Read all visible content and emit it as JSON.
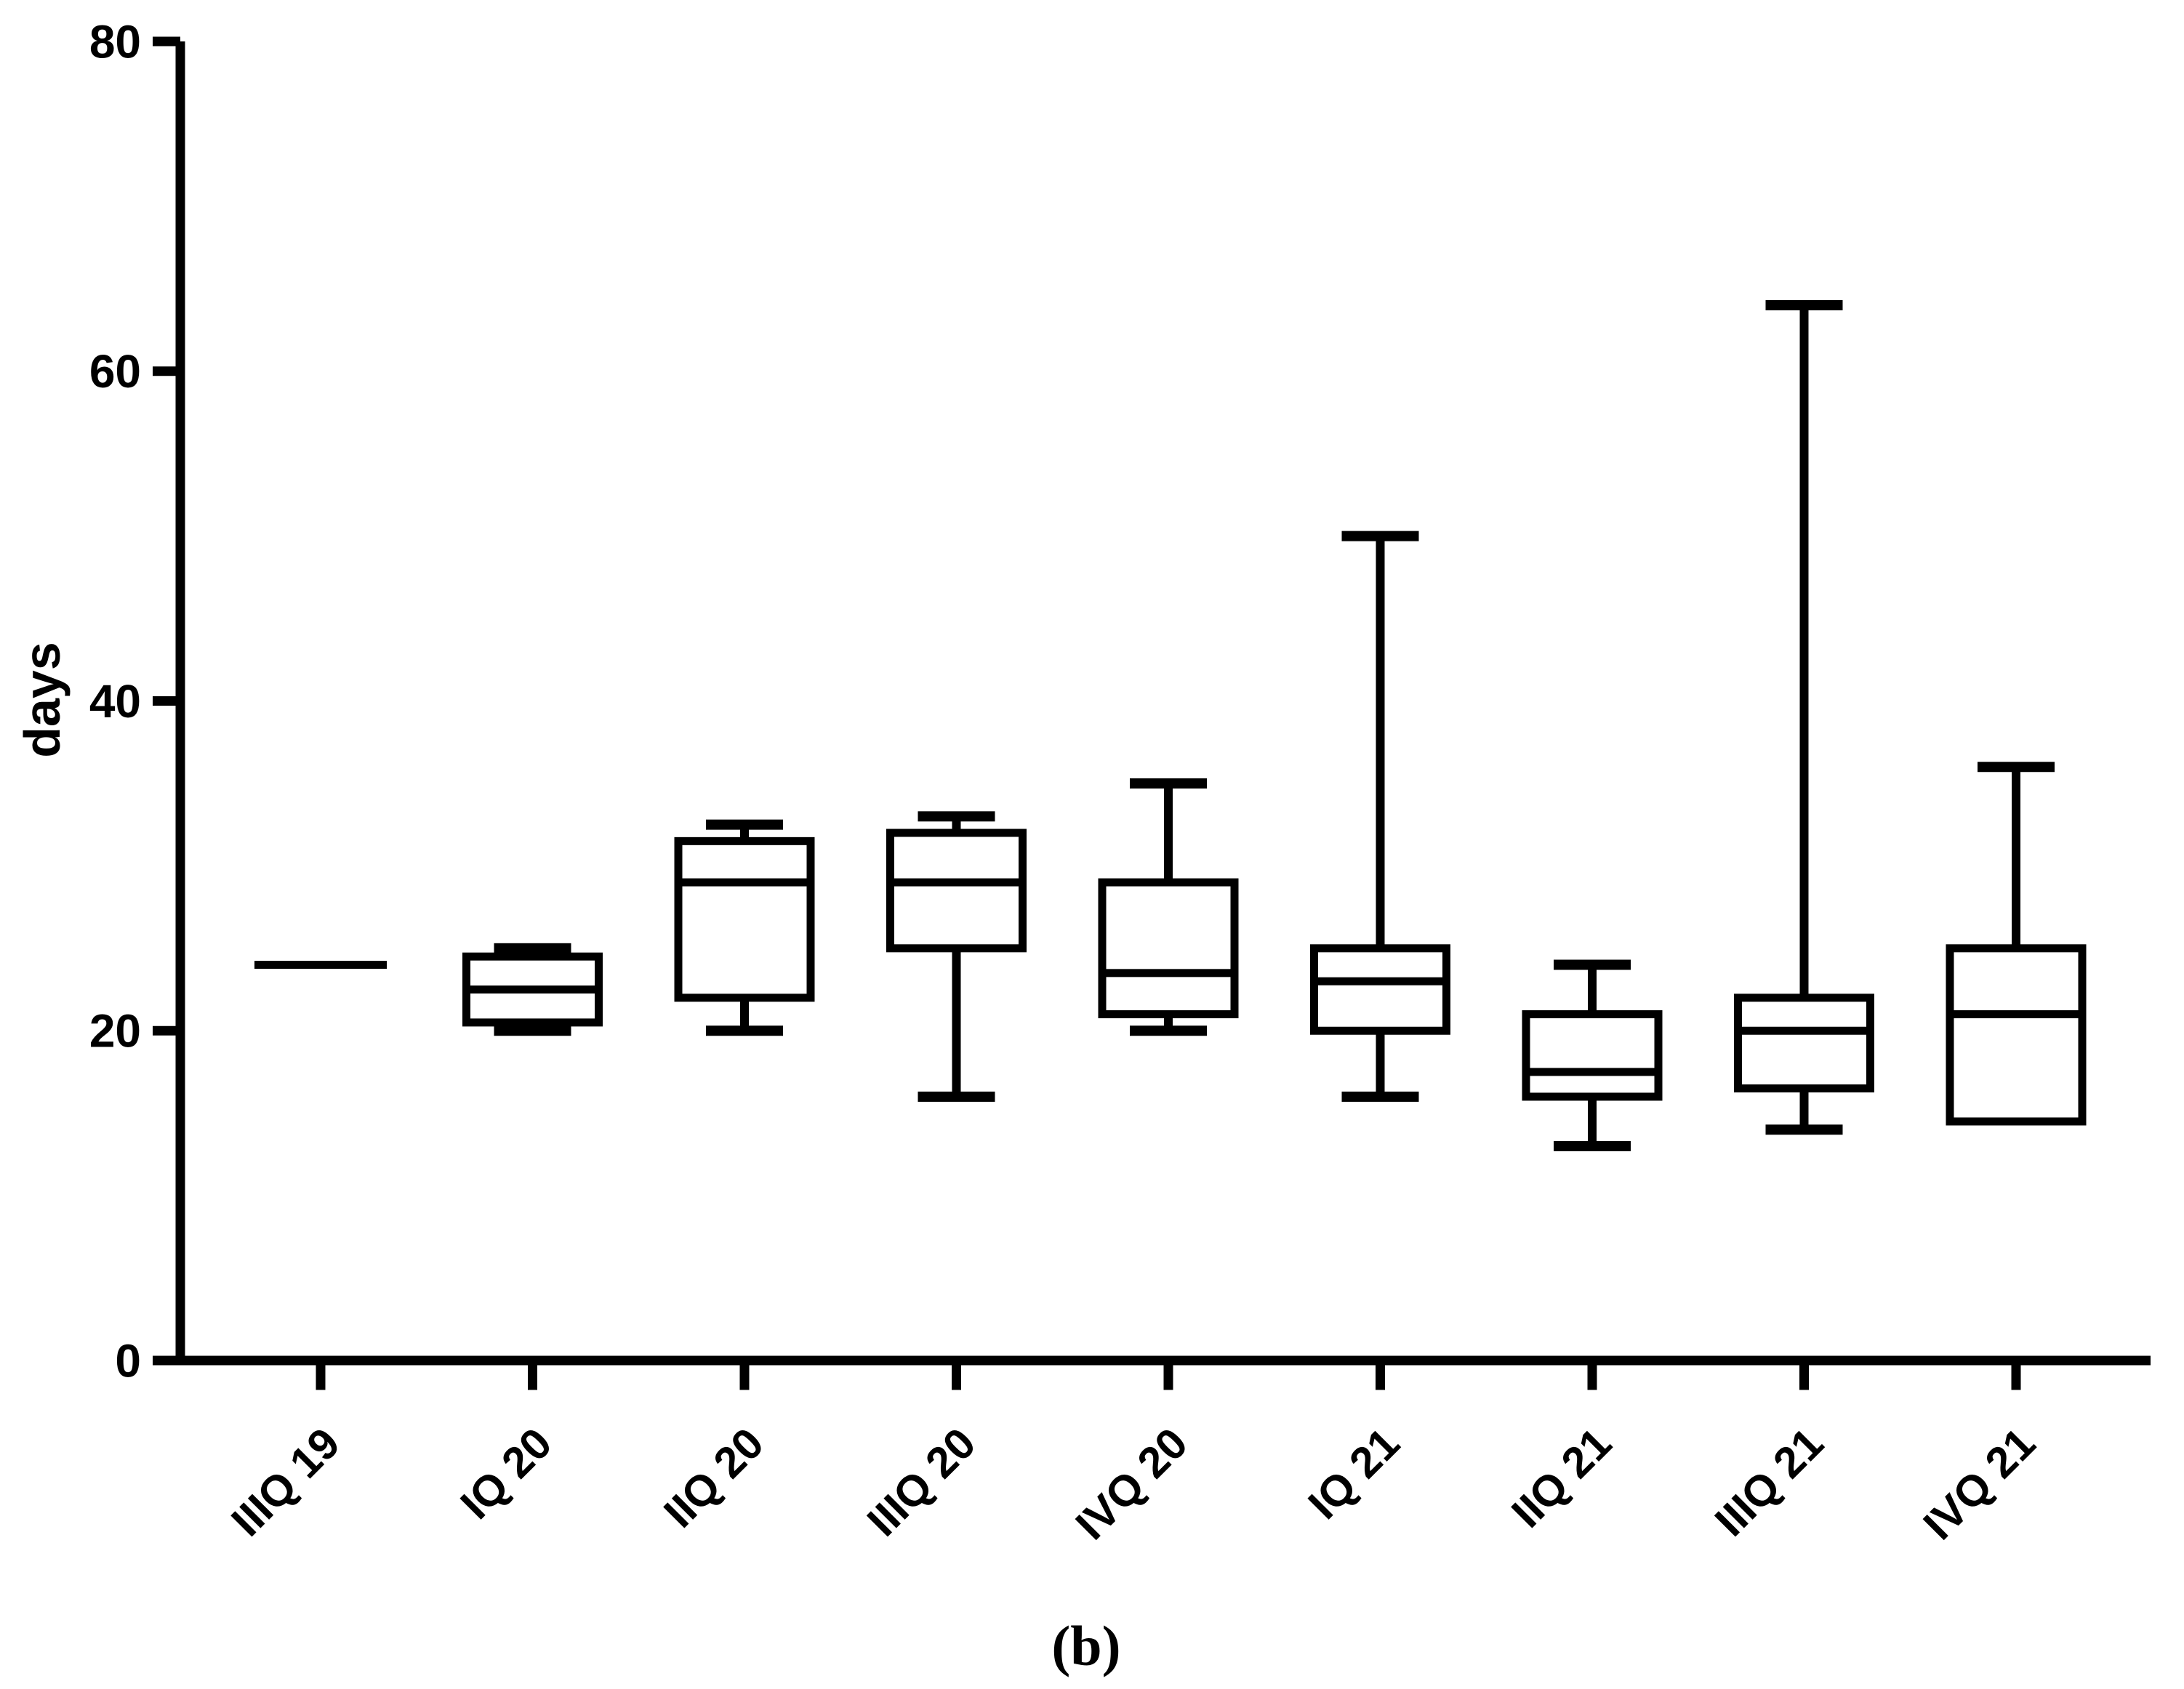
{
  "figure": {
    "caption": "(b)"
  },
  "chart_data": {
    "type": "box",
    "title": "",
    "xlabel": "",
    "ylabel": "days",
    "ylim": [
      0,
      80
    ],
    "yticks": [
      "0",
      "20",
      "40",
      "60",
      "80"
    ],
    "grid": false,
    "legend": "none",
    "box_color": "#000000",
    "background_color": "#ffffff",
    "categories": [
      "IIIQ 19",
      "IQ 20",
      "IIQ 20",
      "IIIQ 20",
      "IVQ 20",
      "IQ 21",
      "IIQ 21",
      "IIIQ 21",
      "IVQ 21"
    ],
    "boxes": [
      {
        "category": "IIIQ 19",
        "min": 24,
        "q1": 24,
        "median": 24,
        "q3": 24,
        "max": 24
      },
      {
        "category": "IQ 20",
        "min": 20,
        "q1": 20.5,
        "median": 22.5,
        "q3": 24.5,
        "max": 25
      },
      {
        "category": "IIQ 20",
        "min": 20,
        "q1": 22,
        "median": 29,
        "q3": 31.5,
        "max": 32.5
      },
      {
        "category": "IIIQ 20",
        "min": 16,
        "q1": 25,
        "median": 29,
        "q3": 32,
        "max": 33
      },
      {
        "category": "IVQ 20",
        "min": 20,
        "q1": 21,
        "median": 23.5,
        "q3": 29,
        "max": 35
      },
      {
        "category": "IQ 21",
        "min": 16,
        "q1": 20,
        "median": 23,
        "q3": 25,
        "max": 50
      },
      {
        "category": "IIQ 21",
        "min": 13,
        "q1": 16,
        "median": 17.5,
        "q3": 21,
        "max": 24
      },
      {
        "category": "IIIQ 21",
        "min": 14,
        "q1": 16.5,
        "median": 20,
        "q3": 22,
        "max": 64
      },
      {
        "category": "IVQ 21",
        "min": 14.5,
        "q1": 14.5,
        "median": 21,
        "q3": 25,
        "max": 36
      }
    ]
  }
}
